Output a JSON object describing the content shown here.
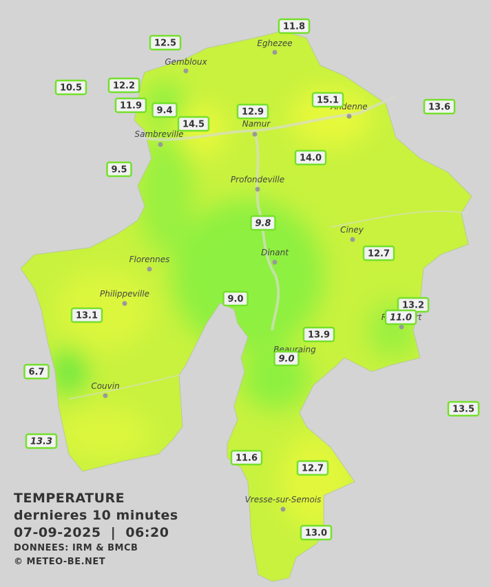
{
  "legend": {
    "title": "TEMPERATURE",
    "subtitle": "dernieres 10 minutes",
    "datetime": "07-09-2025  |  06:20",
    "source": "DONNEES: IRM & BMCB",
    "copyright": "© METEO-BE.NET"
  },
  "cities": [
    "Eghezee",
    "Gembloux",
    "Andenne",
    "Namur",
    "Sambreville",
    "Profondeville",
    "Ciney",
    "Dinant",
    "Florennes",
    "Philippeville",
    "Rochefort",
    "Beauraing",
    "Couvin",
    "Vresse-sur-Semois"
  ],
  "stations": [
    "11.8",
    "12.5",
    "10.5",
    "12.2",
    "11.9",
    "9.4",
    "14.5",
    "12.9",
    "15.1",
    "13.6",
    "9.5",
    "14.0",
    "9.8",
    "12.7",
    "9.0",
    "13.2",
    "11.0",
    "13.1",
    "13.9",
    "9.0",
    "6.7",
    "13.5",
    "13.3",
    "11.6",
    "12.7",
    "13.0"
  ]
}
